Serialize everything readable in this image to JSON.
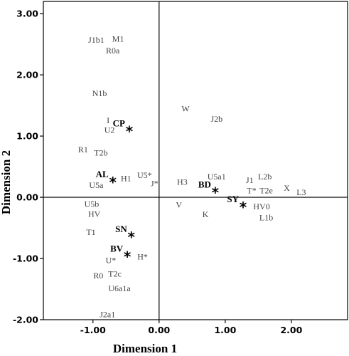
{
  "chart_data": {
    "type": "scatter",
    "xlabel": "Dimension 1",
    "ylabel": "Dimension 2",
    "xlim": [
      -1.75,
      2.85
    ],
    "ylim": [
      -2.0,
      3.2
    ],
    "x_ticks": [
      -1.0,
      0.0,
      1.0,
      2.0
    ],
    "y_ticks": [
      3.0,
      2.0,
      1.0,
      0.0,
      -1.0,
      -2.0
    ],
    "x_tick_labels": [
      "-1.00",
      "0.00",
      "1.00",
      "2.00"
    ],
    "y_tick_labels": [
      "3.00",
      "2.00",
      "1.00",
      "0.00",
      "-1.00",
      "-2.00"
    ],
    "zero_lines": true,
    "grid": false,
    "points": [
      {
        "label": "J1b1",
        "x": -0.95,
        "y": 2.57
      },
      {
        "label": "M1",
        "x": -0.62,
        "y": 2.59
      },
      {
        "label": "R0a",
        "x": -0.7,
        "y": 2.4
      },
      {
        "label": "N1b",
        "x": -0.9,
        "y": 1.7
      },
      {
        "label": "I",
        "x": -0.77,
        "y": 1.26
      },
      {
        "label": "U2",
        "x": -0.75,
        "y": 1.1
      },
      {
        "label": "R1",
        "x": -1.15,
        "y": 0.78
      },
      {
        "label": "T2b",
        "x": -0.88,
        "y": 0.73
      },
      {
        "label": "U5a",
        "x": -0.95,
        "y": 0.2
      },
      {
        "label": "H1",
        "x": -0.5,
        "y": 0.31
      },
      {
        "label": "U5*",
        "x": -0.22,
        "y": 0.36
      },
      {
        "label": "J*",
        "x": -0.07,
        "y": 0.23
      },
      {
        "label": "W",
        "x": 0.4,
        "y": 1.45
      },
      {
        "label": "J2b",
        "x": 0.87,
        "y": 1.28
      },
      {
        "label": "H3",
        "x": 0.35,
        "y": 0.25
      },
      {
        "label": "U5a1",
        "x": 0.87,
        "y": 0.34
      },
      {
        "label": "J1",
        "x": 1.37,
        "y": 0.28
      },
      {
        "label": "L2b",
        "x": 1.6,
        "y": 0.34
      },
      {
        "label": "T*",
        "x": 1.4,
        "y": 0.11
      },
      {
        "label": "T2e",
        "x": 1.62,
        "y": 0.11
      },
      {
        "label": "X",
        "x": 1.93,
        "y": 0.15
      },
      {
        "label": "L3",
        "x": 2.15,
        "y": 0.08
      },
      {
        "label": "V",
        "x": 0.3,
        "y": -0.12
      },
      {
        "label": "K",
        "x": 0.7,
        "y": -0.28
      },
      {
        "label": "HV0",
        "x": 1.55,
        "y": -0.15
      },
      {
        "label": "L1b",
        "x": 1.62,
        "y": -0.33
      },
      {
        "label": "U5b",
        "x": -1.02,
        "y": -0.11
      },
      {
        "label": "HV",
        "x": -0.98,
        "y": -0.27
      },
      {
        "label": "T1",
        "x": -1.03,
        "y": -0.57
      },
      {
        "label": "U*",
        "x": -0.73,
        "y": -1.03
      },
      {
        "label": "H*",
        "x": -0.25,
        "y": -0.97
      },
      {
        "label": "R0",
        "x": -0.92,
        "y": -1.28
      },
      {
        "label": "T2c",
        "x": -0.67,
        "y": -1.25
      },
      {
        "label": "U6a1a",
        "x": -0.6,
        "y": -1.49
      },
      {
        "label": "J2a1",
        "x": -0.78,
        "y": -1.91
      }
    ],
    "groups": [
      {
        "label": "CP",
        "x": -0.45,
        "y": 1.1
      },
      {
        "label": "AL",
        "x": -0.7,
        "y": 0.27
      },
      {
        "label": "BD",
        "x": 0.85,
        "y": 0.1
      },
      {
        "label": "SY",
        "x": 1.27,
        "y": -0.14
      },
      {
        "label": "SN",
        "x": -0.42,
        "y": -0.63
      },
      {
        "label": "BV",
        "x": -0.48,
        "y": -0.95
      }
    ]
  }
}
